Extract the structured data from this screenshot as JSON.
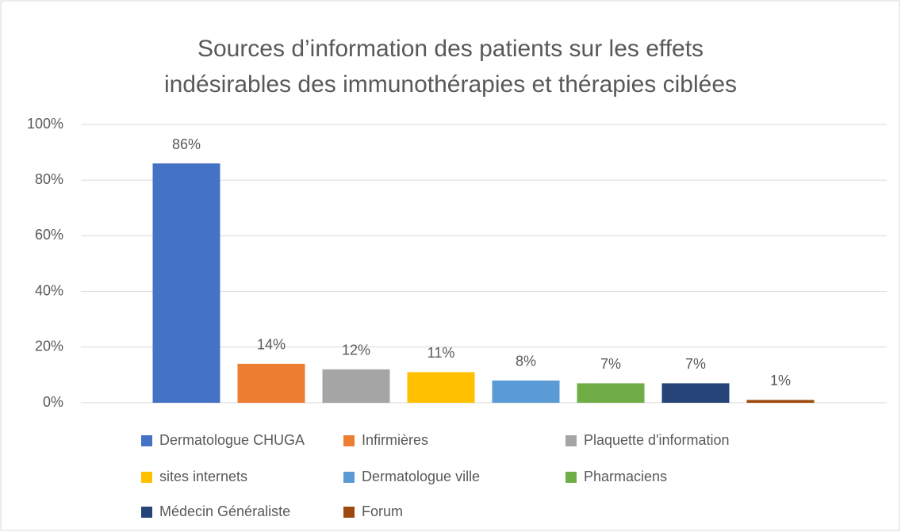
{
  "chart_data": {
    "type": "bar",
    "title": [
      "Sources d’information des patients sur les effets",
      "indésirables des immunothérapies et thérapies ciblées"
    ],
    "categories": [
      null
    ],
    "series": [
      {
        "name": "Dermatologue CHUGA",
        "color": "#4472c4",
        "values": [
          86
        ],
        "value_labels": [
          "86%"
        ]
      },
      {
        "name": "Infirmières",
        "color": "#ed7d31",
        "values": [
          14
        ],
        "value_labels": [
          "14%"
        ]
      },
      {
        "name": "Plaquette d'information",
        "color": "#a5a5a5",
        "values": [
          12
        ],
        "value_labels": [
          "12%"
        ]
      },
      {
        "name": "sites internets",
        "color": "#ffc000",
        "values": [
          11
        ],
        "value_labels": [
          "11%"
        ]
      },
      {
        "name": "Dermatologue ville",
        "color": "#5b9bd5",
        "values": [
          8
        ],
        "value_labels": [
          "8%"
        ]
      },
      {
        "name": "Pharmaciens",
        "color": "#70ad47",
        "values": [
          7
        ],
        "value_labels": [
          "7%"
        ]
      },
      {
        "name": "Médecin Généraliste",
        "color": "#264478",
        "values": [
          7
        ],
        "value_labels": [
          "7%"
        ]
      },
      {
        "name": "Forum",
        "color": "#9e480e",
        "values": [
          1
        ],
        "value_labels": [
          "1%"
        ]
      }
    ],
    "ylim": [
      0,
      100
    ],
    "yticks": [
      {
        "value": 0,
        "label": "0%"
      },
      {
        "value": 20,
        "label": "20%"
      },
      {
        "value": 40,
        "label": "40%"
      },
      {
        "value": 60,
        "label": "60%"
      },
      {
        "value": 80,
        "label": "80%"
      },
      {
        "value": 100,
        "label": "100%"
      }
    ],
    "grid": true,
    "legend": "bottom"
  }
}
